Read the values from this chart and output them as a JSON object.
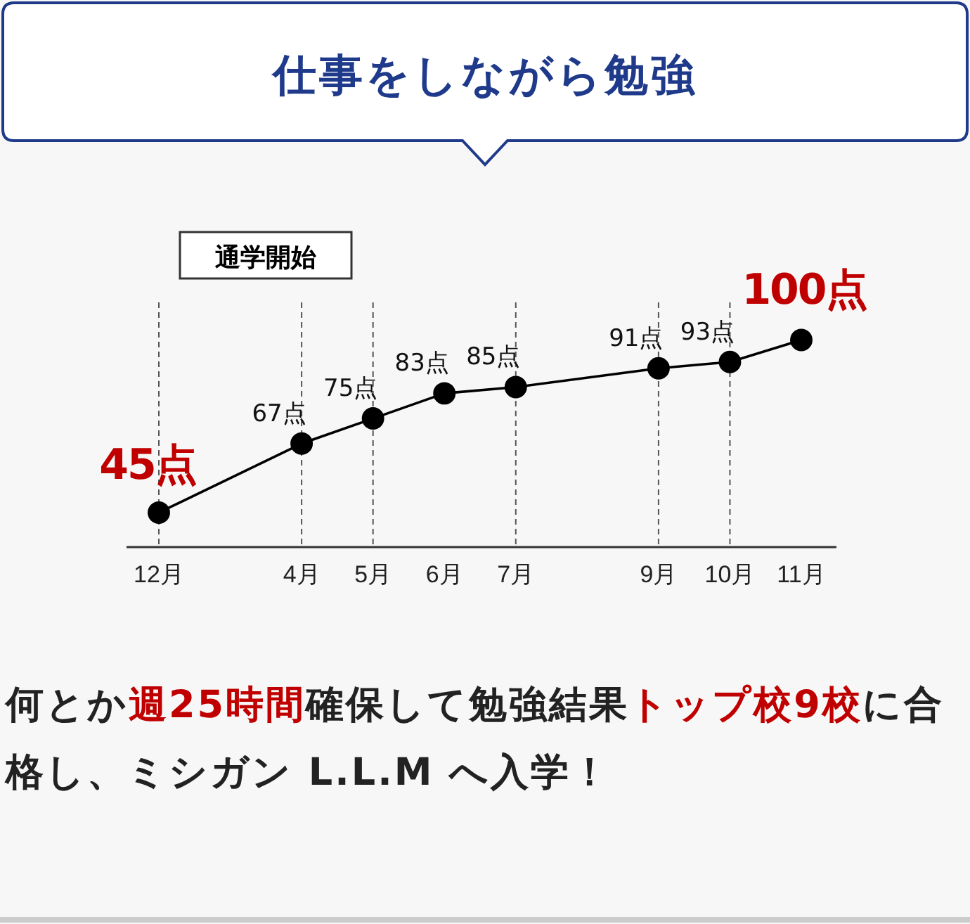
{
  "chart_data": {
    "type": "line",
    "title": "仕事をしながら勉強",
    "categories": [
      "12月",
      null,
      "4月",
      "5月",
      "6月",
      "7月",
      null,
      "9月",
      "10月",
      "11月"
    ],
    "series": [
      {
        "color": "#000000",
        "values": [
          45,
          null,
          67,
          75,
          83,
          85,
          null,
          91,
          93,
          100
        ],
        "value_labels": [
          "45点",
          null,
          "67点",
          "75点",
          "83点",
          "85点",
          null,
          "91点",
          "93点",
          "100点"
        ]
      }
    ],
    "ylim": [
      34,
      112
    ],
    "marker": "circle",
    "tick_labels": "x",
    "ref_lines": [
      {
        "axis": "x",
        "value": "12月",
        "line_style": "dashed",
        "color": "#555555"
      },
      {
        "axis": "x",
        "value": "4月",
        "line_style": "dashed",
        "color": "#555555"
      },
      {
        "axis": "x",
        "value": "5月",
        "line_style": "dashed",
        "color": "#555555"
      },
      {
        "axis": "x",
        "value": "7月",
        "line_style": "dashed",
        "color": "#555555"
      },
      {
        "axis": "x",
        "value": "9月",
        "line_style": "dashed",
        "color": "#555555"
      },
      {
        "axis": "x",
        "value": "10月",
        "line_style": "dashed",
        "color": "#555555"
      }
    ],
    "annotations": [
      "通学開始",
      [
        "何とか",
        "週25時間",
        "確保して勉強結果",
        "トップ校9校",
        "に合格し、ミシガン L.L.M へ入学！"
      ]
    ]
  }
}
